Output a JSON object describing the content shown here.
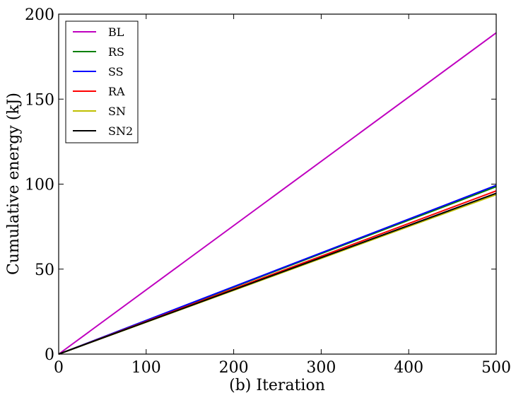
{
  "chart_data": {
    "type": "line",
    "xlabel": "(b) Iteration",
    "ylabel": "Cumulative energy (kJ)",
    "xlim": [
      0,
      500
    ],
    "ylim": [
      0,
      200
    ],
    "xticks": [
      "0",
      "100",
      "200",
      "300",
      "400",
      "500"
    ],
    "yticks": [
      "0",
      "50",
      "100",
      "150",
      "200"
    ],
    "grid": false,
    "legend_position": "top-left",
    "series": [
      {
        "name": "BL",
        "color": "#bf00bf",
        "x": [
          0,
          500
        ],
        "y": [
          0,
          189
        ]
      },
      {
        "name": "RS",
        "color": "#008000",
        "x": [
          0,
          500
        ],
        "y": [
          0,
          98.5
        ]
      },
      {
        "name": "SS",
        "color": "#0000ff",
        "x": [
          0,
          500
        ],
        "y": [
          0,
          99.3
        ]
      },
      {
        "name": "RA",
        "color": "#ff0000",
        "x": [
          0,
          500
        ],
        "y": [
          0,
          96.0
        ]
      },
      {
        "name": "SN",
        "color": "#bfbf00",
        "x": [
          0,
          500
        ],
        "y": [
          0,
          93.8
        ]
      },
      {
        "name": "SN2",
        "color": "#000000",
        "x": [
          0,
          500
        ],
        "y": [
          0,
          94.6
        ]
      }
    ]
  }
}
